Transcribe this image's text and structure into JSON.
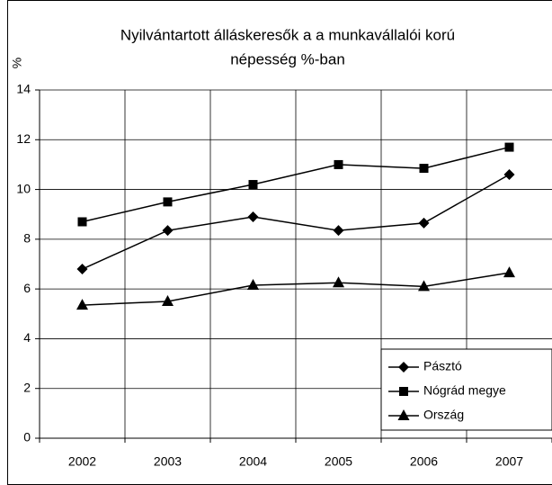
{
  "chart_data": {
    "type": "line",
    "title": [
      "Nyilvántartott álláskeresők a a munkavállalói korú",
      "népesség %-ban"
    ],
    "y_label": "%",
    "categories": [
      "2002",
      "2003",
      "2004",
      "2005",
      "2006",
      "2007"
    ],
    "series": [
      {
        "name": "Pásztó",
        "color": "#000000",
        "marker": "diamond",
        "values": [
          6.8,
          8.35,
          8.9,
          8.35,
          8.65,
          10.6
        ]
      },
      {
        "name": "Nógrád megye",
        "color": "#000000",
        "marker": "square",
        "values": [
          8.7,
          9.5,
          10.2,
          11.0,
          10.85,
          11.7
        ]
      },
      {
        "name": "Ország",
        "color": "#000000",
        "marker": "triangle",
        "values": [
          5.35,
          5.5,
          6.15,
          6.25,
          6.1,
          6.65
        ]
      }
    ],
    "ylim": [
      0,
      14
    ],
    "yticks": [
      0,
      2,
      4,
      6,
      8,
      10,
      12,
      14
    ],
    "grid": true,
    "legend": "bottom-right"
  }
}
